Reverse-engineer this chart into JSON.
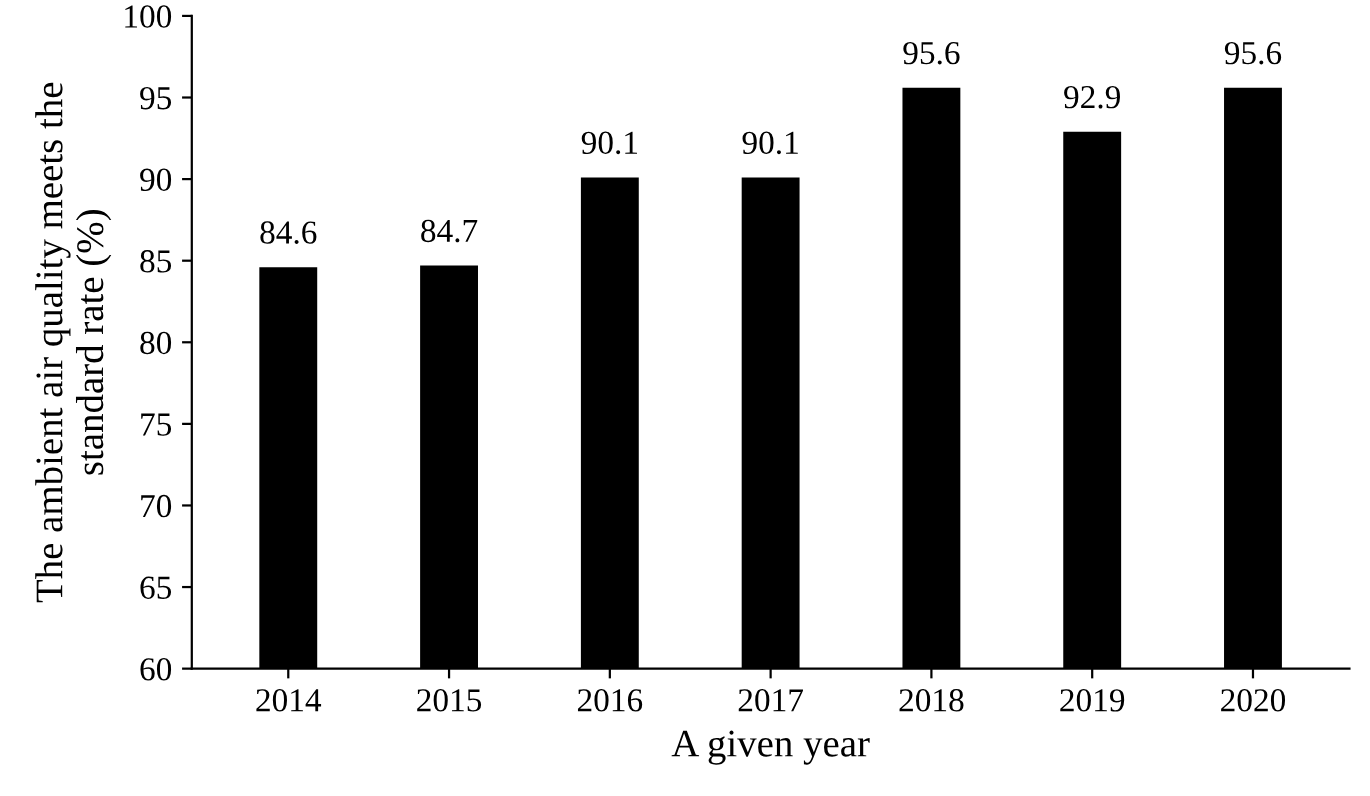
{
  "chart_data": {
    "type": "bar",
    "xlabel": "A given year",
    "ylabel": "The ambient air quality meets the\nstandard rate (%)",
    "categories": [
      "2014",
      "2015",
      "2016",
      "2017",
      "2018",
      "2019",
      "2020"
    ],
    "values": [
      84.6,
      84.7,
      90.1,
      90.1,
      95.6,
      92.9,
      95.6
    ],
    "color": "#000000",
    "data_labels": true,
    "ylim": [
      60,
      100
    ],
    "yticks": [
      60,
      65,
      70,
      75,
      80,
      85,
      90,
      95,
      100
    ],
    "grid": false
  }
}
